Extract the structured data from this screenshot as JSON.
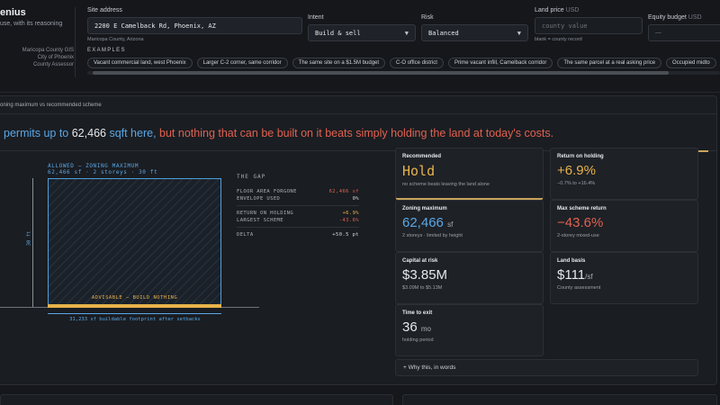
{
  "brand": {
    "name": "enius",
    "tagline": "use, with its reasoning"
  },
  "sources": [
    "Maricopa County GIS",
    "City of Phoenix",
    "County Assessor"
  ],
  "form": {
    "site_address": {
      "label": "Site address",
      "value": "2200 E Camelback Rd, Phoenix, AZ",
      "sub": "Maricopa County, Arizona"
    },
    "intent": {
      "label": "Intent",
      "value": "Build & sell"
    },
    "risk": {
      "label": "Risk",
      "value": "Balanced"
    },
    "land_price": {
      "label": "Land price",
      "unit": "USD",
      "placeholder": "county value",
      "sub": "blank = county record"
    },
    "equity_budget": {
      "label": "Equity budget",
      "unit": "USD",
      "value": "—"
    }
  },
  "examples": {
    "label": "EXAMPLES",
    "chips": [
      "Vacant commercial land, west Phoenix",
      "Larger C-2 corner, same corridor",
      "The same site on a $1.5M budget",
      "C-O office district",
      "Prime vacant infill, Camelback corridor",
      "The same parcel at a real asking price",
      "Occupied midto"
    ]
  },
  "panel": {
    "head": "oning maximum vs recommended scheme",
    "headline": {
      "pre": "permits up to ",
      "num": "62,466",
      "mid": " sqft here, ",
      "neg": "but nothing that can be built on it beats simply holding the land at today's costs."
    }
  },
  "diagram": {
    "allowed_label": "ALLOWED — ZONING MAXIMUM",
    "allowed_detail": "62,466 sf · 2 storeys · 30 ft",
    "advisable_label": "ADVISABLE — BUILD NOTHING",
    "footprint_label": "31,233 sf buildable footprint after setbacks",
    "height_label": "30 ft"
  },
  "gap": {
    "title": "THE GAP",
    "rows1": [
      {
        "label": "FLOOR AREA FORGONE",
        "value": "62,466 sf"
      },
      {
        "label": "ENVELOPE USED",
        "value": "0%"
      }
    ],
    "rows2": [
      {
        "label": "RETURN ON HOLDING",
        "value": "+6.9%"
      },
      {
        "label": "LARGEST SCHEME",
        "value": "-43.6%"
      }
    ],
    "delta": {
      "label": "DELTA",
      "value": "+50.5 pt"
    }
  },
  "cards": {
    "recommended": {
      "label": "Recommended",
      "value": "Hold",
      "sub": "no scheme beats leaving the land alone"
    },
    "return_holding": {
      "label": "Return on holding",
      "value": "+6.9%",
      "sub": "−0.7% to +16.4%"
    },
    "zoning_max": {
      "label": "Zoning maximum",
      "value": "62,466",
      "unit": "sf",
      "sub": "2 storeys · limited by height"
    },
    "max_scheme": {
      "label": "Max scheme return",
      "value": "−43.6%",
      "sub": "2-storey mixed-use"
    },
    "capital": {
      "label": "Capital at risk",
      "value": "$3.85M",
      "sub": "$3.09M to $5.13M"
    },
    "land_basis": {
      "label": "Land basis",
      "value": "$111",
      "unit": "/sf",
      "sub": "County assessment"
    },
    "time_exit": {
      "label": "Time to exit",
      "value": "36",
      "unit": "mo",
      "sub": "holding period"
    }
  },
  "why": "+ Why this, in words",
  "colors": {
    "accent_blue": "#5aa7e6",
    "gold": "#e8b24a",
    "red": "#e0614f"
  }
}
